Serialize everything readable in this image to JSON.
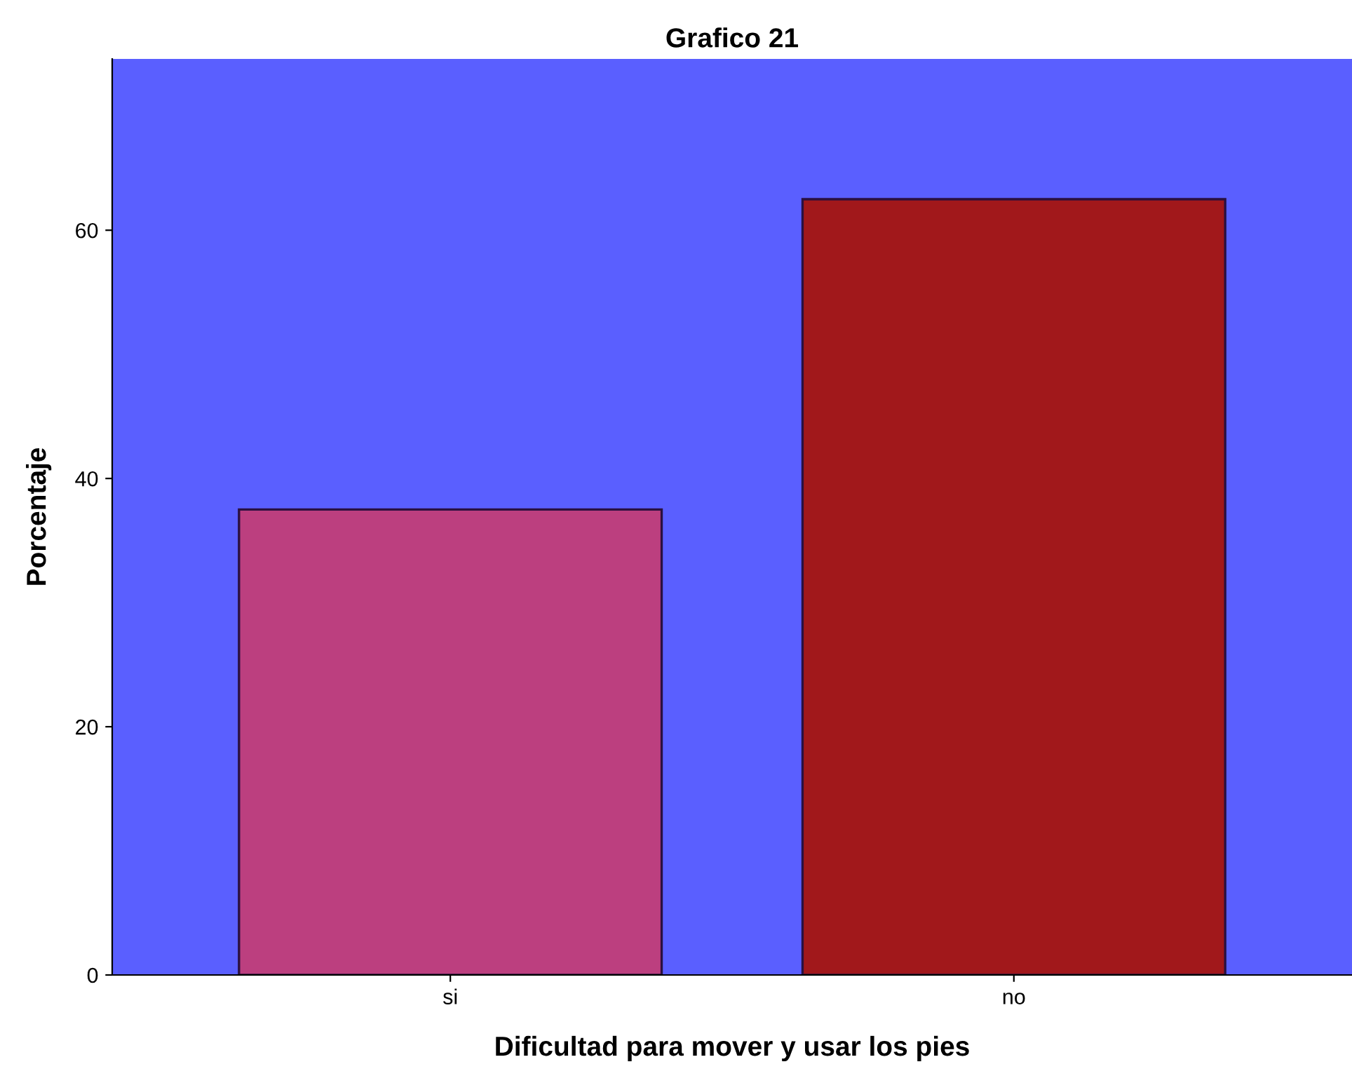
{
  "chart_data": {
    "type": "bar",
    "title": "Grafico 21",
    "xlabel": "Dificultad para mover y usar los pies",
    "ylabel": "Porcentaje",
    "categories": [
      "si",
      "no"
    ],
    "values": [
      37.5,
      62.5
    ],
    "colors": [
      "#bc3f7f",
      "#a1181b"
    ],
    "ylim": [
      0,
      73.8
    ],
    "yticks": [
      0,
      20,
      40,
      60
    ],
    "grid": false,
    "legend": false
  }
}
